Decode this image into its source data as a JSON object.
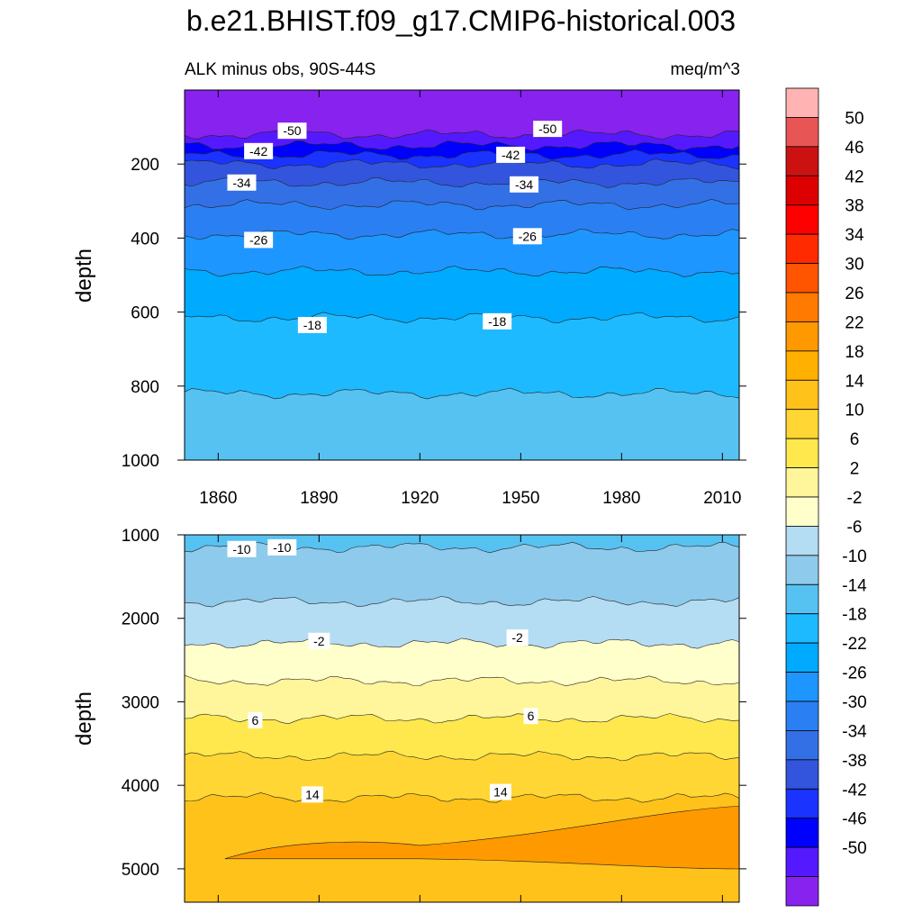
{
  "title": "b.e21.BHIST.f09_g17.CMIP6-historical.003",
  "chart_data": [
    {
      "type": "contour",
      "panel": "top",
      "left_label": "ALK minus obs, 90S-44S",
      "right_label": "meq/m^3",
      "ylabel": "depth",
      "xlim": [
        1850,
        2015
      ],
      "ylim": [
        1000,
        0
      ],
      "x_ticks": [
        1860,
        1890,
        1920,
        1950,
        1980,
        2010
      ],
      "y_ticks": [
        200,
        400,
        600,
        800,
        1000
      ],
      "bands": [
        {
          "top": 0,
          "bottom": 120,
          "lo": -54,
          "hi": -50
        },
        {
          "top": 120,
          "bottom": 150,
          "lo": -50,
          "hi": -46
        },
        {
          "top": 150,
          "bottom": 175,
          "lo": -46,
          "hi": -42
        },
        {
          "top": 175,
          "bottom": 200,
          "lo": -42,
          "hi": -38
        },
        {
          "top": 200,
          "bottom": 250,
          "lo": -38,
          "hi": -34
        },
        {
          "top": 250,
          "bottom": 310,
          "lo": -34,
          "hi": -30
        },
        {
          "top": 310,
          "bottom": 390,
          "lo": -30,
          "hi": -26
        },
        {
          "top": 390,
          "bottom": 490,
          "lo": -26,
          "hi": -22
        },
        {
          "top": 490,
          "bottom": 615,
          "lo": -22,
          "hi": -18
        },
        {
          "top": 615,
          "bottom": 820,
          "lo": -18,
          "hi": -14
        },
        {
          "top": 820,
          "bottom": 1000,
          "lo": -14,
          "hi": -10
        }
      ],
      "contour_labels": [
        {
          "text": "-50",
          "x": 1882,
          "y": 110
        },
        {
          "text": "-50",
          "x": 1958,
          "y": 105
        },
        {
          "text": "-42",
          "x": 1872,
          "y": 165
        },
        {
          "text": "-42",
          "x": 1947,
          "y": 175
        },
        {
          "text": "-34",
          "x": 1867,
          "y": 250
        },
        {
          "text": "-34",
          "x": 1951,
          "y": 255
        },
        {
          "text": "-26",
          "x": 1872,
          "y": 405
        },
        {
          "text": "-26",
          "x": 1952,
          "y": 395
        },
        {
          "text": "-18",
          "x": 1888,
          "y": 635
        },
        {
          "text": "-18",
          "x": 1943,
          "y": 625
        }
      ]
    },
    {
      "type": "contour",
      "panel": "bottom",
      "ylabel": "depth",
      "xlim": [
        1850,
        2015
      ],
      "ylim": [
        5400,
        1000
      ],
      "y_ticks": [
        1000,
        2000,
        3000,
        4000,
        5000
      ],
      "bands": [
        {
          "top": 1000,
          "bottom": 1150,
          "lo": -14,
          "hi": -10
        },
        {
          "top": 1150,
          "bottom": 1800,
          "lo": -10,
          "hi": -6
        },
        {
          "top": 1800,
          "bottom": 2300,
          "lo": -6,
          "hi": -2
        },
        {
          "top": 2300,
          "bottom": 2750,
          "lo": -2,
          "hi": 2
        },
        {
          "top": 2750,
          "bottom": 3200,
          "lo": 2,
          "hi": 6
        },
        {
          "top": 3200,
          "bottom": 3650,
          "lo": 6,
          "hi": 10
        },
        {
          "top": 3650,
          "bottom": 4150,
          "lo": 10,
          "hi": 14
        },
        {
          "top": 4150,
          "bottom": 5400,
          "lo": 14,
          "hi": 18
        }
      ],
      "contour_labels": [
        {
          "text": "-10",
          "x": 1867,
          "y": 1170
        },
        {
          "text": "-10",
          "x": 1879,
          "y": 1150
        },
        {
          "text": "-2",
          "x": 1890,
          "y": 2270
        },
        {
          "text": "-2",
          "x": 1949,
          "y": 2230
        },
        {
          "text": "6",
          "x": 1871,
          "y": 3220
        },
        {
          "text": "6",
          "x": 1953,
          "y": 3170
        },
        {
          "text": "14",
          "x": 1888,
          "y": 4110
        },
        {
          "text": "14",
          "x": 1944,
          "y": 4080
        }
      ]
    }
  ],
  "colorbar": {
    "labels": [
      "50",
      "46",
      "42",
      "38",
      "34",
      "30",
      "26",
      "22",
      "18",
      "14",
      "10",
      "6",
      "2",
      "-2",
      "-6",
      "-10",
      "-14",
      "-18",
      "-22",
      "-26",
      "-30",
      "-34",
      "-38",
      "-42",
      "-46",
      "-50"
    ],
    "colors": [
      "#ffb3b3",
      "#e85555",
      "#cc1111",
      "#dd0000",
      "#ff0000",
      "#ff2a00",
      "#ff5500",
      "#ff7a00",
      "#ff9900",
      "#ffb000",
      "#ffc21a",
      "#ffd633",
      "#ffe84d",
      "#fff59a",
      "#ffffcc",
      "#b4dcf2",
      "#8ecaec",
      "#56c2f2",
      "#1ebaff",
      "#00aaff",
      "#1e96ff",
      "#2a80f2",
      "#3370e6",
      "#3355dd",
      "#1a33ff",
      "#0000ff",
      "#5519ff",
      "#8822ee"
    ]
  }
}
